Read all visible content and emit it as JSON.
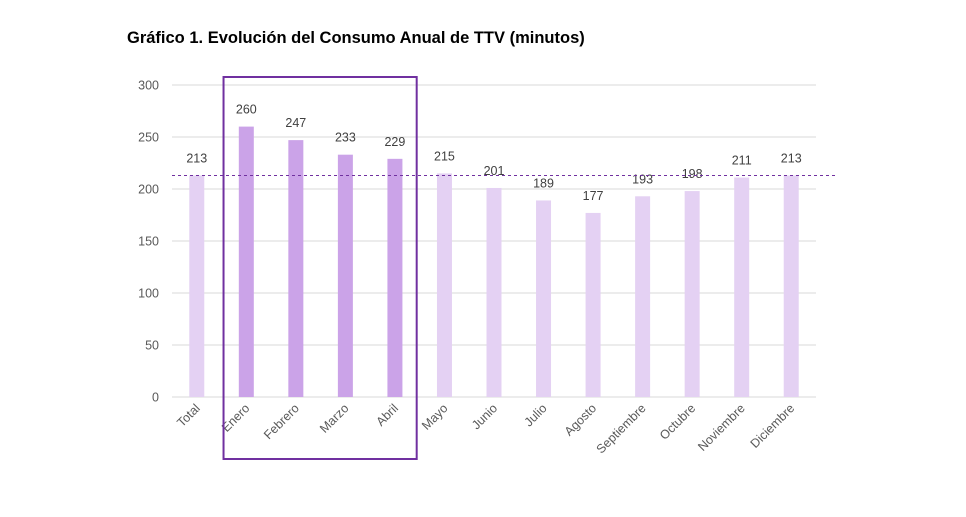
{
  "chart_data": {
    "type": "bar",
    "title": "Gráfico 1. Evolución del Consumo Anual de TTV (minutos)",
    "xlabel": "",
    "ylabel": "",
    "categories": [
      "Total",
      "Enero",
      "Febrero",
      "Marzo",
      "Abril",
      "Mayo",
      "Junio",
      "Julio",
      "Agosto",
      "Septiembre",
      "Octubre",
      "Noviembre",
      "Diciembre"
    ],
    "values": [
      213,
      260,
      247,
      233,
      229,
      215,
      201,
      189,
      177,
      193,
      198,
      211,
      213
    ],
    "ylim": [
      0,
      300
    ],
    "yticks": [
      0,
      50,
      100,
      150,
      200,
      250,
      300
    ],
    "grid": true,
    "legend": "none",
    "reference_line": {
      "value": 213,
      "style": "dashed",
      "color": "#7030a0"
    },
    "highlight": {
      "categories": [
        "Enero",
        "Febrero",
        "Marzo",
        "Abril"
      ],
      "box_color": "#7030a0"
    },
    "colors": {
      "bar": "#e4d1f3",
      "bar_highlight": "#cba3e8",
      "grid": "#d9d9d9",
      "axis": "#d9d9d9"
    }
  }
}
